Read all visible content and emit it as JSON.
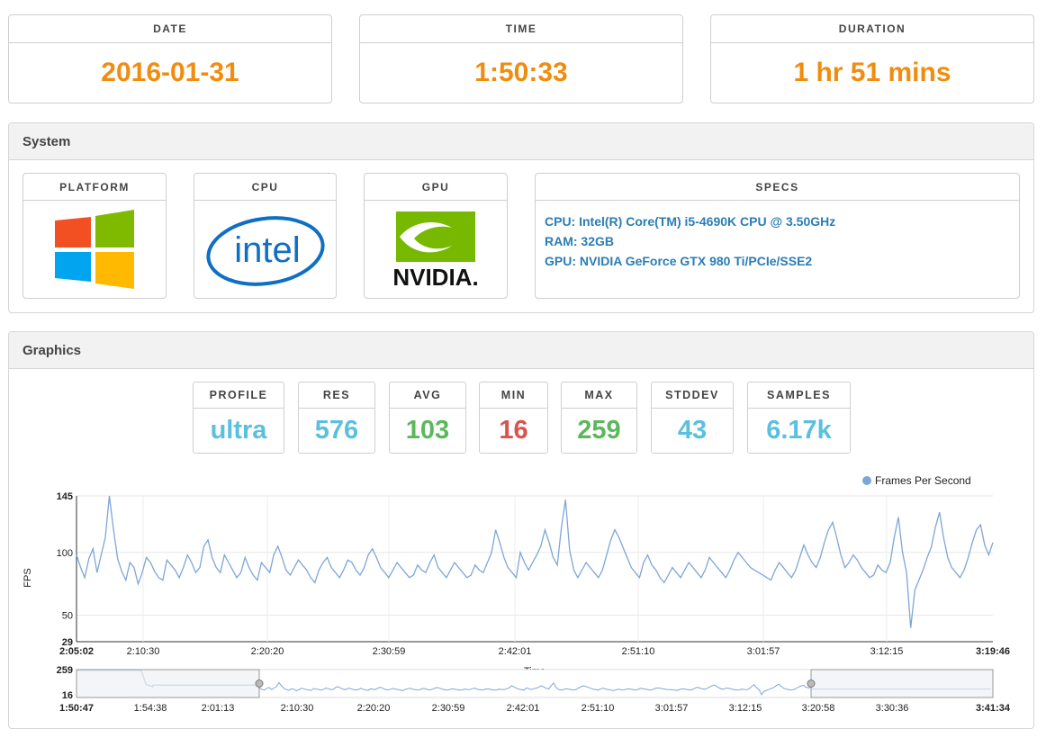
{
  "summary": [
    {
      "label": "DATE",
      "value": "2016-01-31"
    },
    {
      "label": "TIME",
      "value": "1:50:33"
    },
    {
      "label": "DURATION",
      "value": "1 hr 51 mins"
    }
  ],
  "system": {
    "title": "System",
    "platform_label": "PLATFORM",
    "cpu_label": "CPU",
    "gpu_label": "GPU",
    "specs_label": "SPECS",
    "intel_logo_text": "intel",
    "nvidia_logo_text": "NVIDIA.",
    "specs": [
      "CPU: Intel(R) Core(TM) i5-4690K CPU @ 3.50GHz",
      "RAM: 32GB",
      "GPU: NVIDIA GeForce GTX 980 Ti/PCIe/SSE2"
    ]
  },
  "graphics": {
    "title": "Graphics",
    "metrics": [
      {
        "label": "PROFILE",
        "value": "ultra",
        "color": "#5bc0de"
      },
      {
        "label": "RES",
        "value": "576",
        "color": "#5bc0de"
      },
      {
        "label": "AVG",
        "value": "103",
        "color": "#5cb85c"
      },
      {
        "label": "MIN",
        "value": "16",
        "color": "#d9534f"
      },
      {
        "label": "MAX",
        "value": "259",
        "color": "#5cb85c"
      },
      {
        "label": "STDDEV",
        "value": "43",
        "color": "#5cb85c"
      },
      {
        "label": "SAMPLES",
        "value": "6.17k",
        "color": "#5bc0de"
      }
    ]
  },
  "colors": {
    "accent_orange": "#f28c0f",
    "link_blue": "#2a7db5",
    "series": "#7ea6d6"
  },
  "chart_data": {
    "type": "line",
    "legend": "Frames Per Second",
    "legend_position": "top-right",
    "ylabel": "FPS",
    "xlabel": "Time",
    "ylim": [
      29,
      145
    ],
    "yticks": [
      "145",
      "100",
      "50",
      "29"
    ],
    "xticks": [
      "2:05:02",
      "2:10:30",
      "2:20:20",
      "2:30:59",
      "2:42:01",
      "2:51:10",
      "3:01:57",
      "3:12:15",
      "3:19:46"
    ],
    "series": [
      {
        "name": "Frames Per Second",
        "values": [
          98,
          88,
          80,
          95,
          103,
          84,
          98,
          112,
          145,
          118,
          95,
          85,
          78,
          92,
          88,
          75,
          84,
          96,
          92,
          85,
          80,
          78,
          94,
          90,
          86,
          80,
          88,
          98,
          92,
          84,
          88,
          105,
          110,
          96,
          88,
          84,
          98,
          92,
          86,
          80,
          84,
          96,
          88,
          82,
          78,
          92,
          88,
          84,
          98,
          105,
          96,
          86,
          82,
          88,
          94,
          90,
          86,
          80,
          76,
          86,
          92,
          96,
          88,
          84,
          80,
          86,
          94,
          92,
          86,
          82,
          88,
          98,
          103,
          96,
          88,
          84,
          80,
          86,
          92,
          88,
          84,
          80,
          82,
          90,
          86,
          84,
          92,
          98,
          88,
          84,
          80,
          86,
          92,
          88,
          84,
          80,
          82,
          90,
          86,
          84,
          92,
          100,
          118,
          108,
          96,
          88,
          84,
          80,
          100,
          92,
          86,
          92,
          98,
          105,
          118,
          108,
          96,
          90,
          120,
          142,
          102,
          86,
          80,
          86,
          92,
          88,
          84,
          80,
          86,
          98,
          110,
          118,
          112,
          104,
          96,
          88,
          84,
          80,
          92,
          98,
          90,
          86,
          80,
          76,
          82,
          88,
          84,
          80,
          86,
          92,
          88,
          84,
          80,
          86,
          96,
          92,
          88,
          84,
          80,
          86,
          94,
          100,
          96,
          92,
          88,
          86,
          84,
          82,
          80,
          78,
          86,
          92,
          88,
          84,
          80,
          86,
          96,
          106,
          98,
          92,
          88,
          96,
          108,
          118,
          124,
          112,
          98,
          88,
          92,
          98,
          94,
          88,
          84,
          80,
          82,
          90,
          86,
          84,
          92,
          112,
          128,
          100,
          84,
          40,
          70,
          78,
          86,
          96,
          104,
          120,
          132,
          112,
          96,
          88,
          84,
          80,
          86,
          96,
          108,
          118,
          122,
          106,
          98,
          108
        ]
      }
    ],
    "navigator": {
      "ylim": [
        16,
        259
      ],
      "yticks": [
        "259",
        "16"
      ],
      "xticks": [
        "1:50:47",
        "1:54:38",
        "2:01:13",
        "2:10:30",
        "2:20:20",
        "2:30:59",
        "2:42:01",
        "2:51:10",
        "3:01:57",
        "3:12:15",
        "3:20:58",
        "3:30:36",
        "3:41:34"
      ]
    }
  }
}
